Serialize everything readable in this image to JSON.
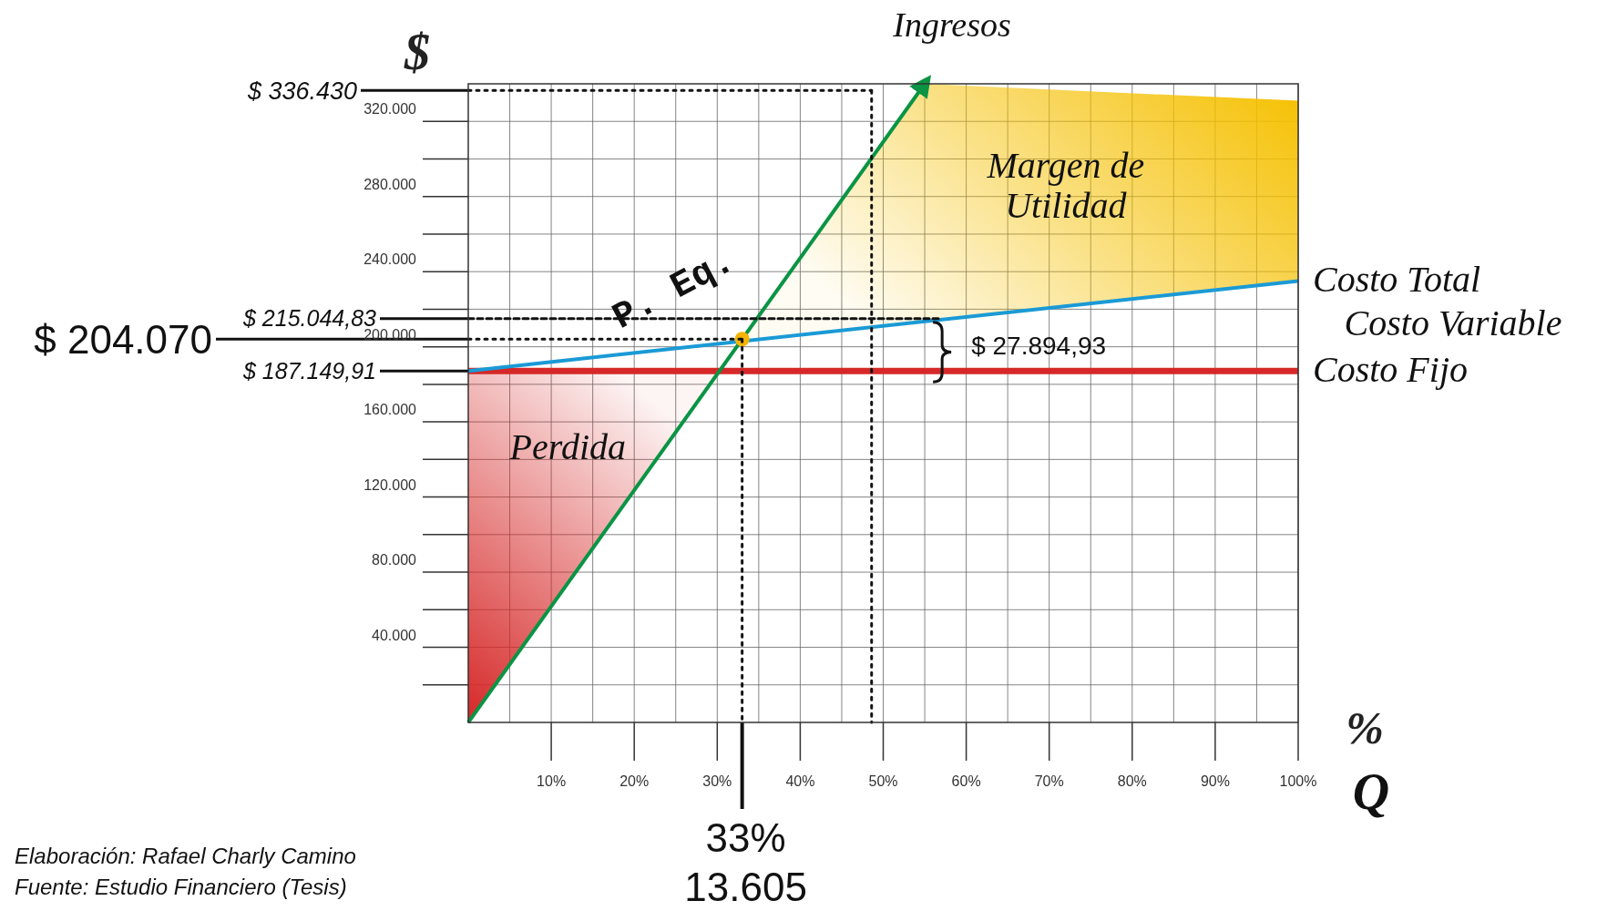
{
  "chart_data": {
    "type": "line",
    "xlabel": "%",
    "ylabel": "$",
    "xlim": [
      0,
      100
    ],
    "ylim": [
      0,
      340000
    ],
    "xticks": [
      {
        "value": 5,
        "label": null
      },
      {
        "value": 10,
        "label": "10%"
      },
      {
        "value": 15,
        "label": null
      },
      {
        "value": 20,
        "label": "20%"
      },
      {
        "value": 25,
        "label": null
      },
      {
        "value": 30,
        "label": "30%"
      },
      {
        "value": 35,
        "label": null
      },
      {
        "value": 40,
        "label": "40%"
      },
      {
        "value": 45,
        "label": null
      },
      {
        "value": 50,
        "label": "50%"
      },
      {
        "value": 55,
        "label": null
      },
      {
        "value": 60,
        "label": "60%"
      },
      {
        "value": 65,
        "label": null
      },
      {
        "value": 70,
        "label": "70%"
      },
      {
        "value": 75,
        "label": null
      },
      {
        "value": 80,
        "label": "80%"
      },
      {
        "value": 85,
        "label": null
      },
      {
        "value": 90,
        "label": "90%"
      },
      {
        "value": 95,
        "label": null
      },
      {
        "value": 100,
        "label": "100%"
      }
    ],
    "yticks": [
      {
        "value": 20000,
        "label": null
      },
      {
        "value": 40000,
        "label": "40.000"
      },
      {
        "value": 60000,
        "label": null
      },
      {
        "value": 80000,
        "label": "80.000"
      },
      {
        "value": 100000,
        "label": null
      },
      {
        "value": 120000,
        "label": "120.000"
      },
      {
        "value": 140000,
        "label": null
      },
      {
        "value": 160000,
        "label": "160.000"
      },
      {
        "value": 180000,
        "label": null
      },
      {
        "value": 200000,
        "label": "200.000"
      },
      {
        "value": 220000,
        "label": null
      },
      {
        "value": 240000,
        "label": "240.000"
      },
      {
        "value": 260000,
        "label": null
      },
      {
        "value": 280000,
        "label": "280.000"
      },
      {
        "value": 300000,
        "label": null
      },
      {
        "value": 320000,
        "label": "320.000"
      }
    ],
    "grid": true,
    "legend": false,
    "series": [
      {
        "name": "Perdida",
        "type": "area",
        "color": "#d62828",
        "x": [
          0,
          0,
          30
        ],
        "values": [
          0,
          187000,
          187000
        ]
      },
      {
        "name": "Margen de Utilidad",
        "type": "area",
        "color": "#f5c000",
        "x": [
          33,
          55,
          100,
          100
        ],
        "values": [
          204000,
          340000,
          331000,
          235000
        ]
      },
      {
        "name": "Costo Fijo",
        "color": "#d62828",
        "x": [
          0,
          100
        ],
        "values": [
          187149.91,
          187149.91
        ]
      },
      {
        "name": "Costo Total",
        "color": "#1a9ad6",
        "x": [
          0,
          100
        ],
        "values": [
          187149.91,
          235000
        ]
      },
      {
        "name": "Ingresos",
        "color": "#0a9444",
        "x": [
          0,
          55
        ],
        "values": [
          0,
          340000
        ]
      },
      {
        "type": "scatter",
        "color": "#f5b400",
        "x": [
          33
        ],
        "values": [
          204070
        ]
      }
    ],
    "ref_lines": [
      {
        "axis": "y",
        "value": 336430,
        "label": "$ 336.430",
        "line_style": "dotted"
      },
      {
        "axis": "y",
        "value": 215044.83,
        "label": "$ 215.044,83",
        "line_style": "dashed"
      },
      {
        "axis": "y",
        "value": 204070,
        "label": "$ 204.070",
        "line_style": "dotted"
      },
      {
        "axis": "y",
        "value": 187149.91,
        "label": "$ 187.149,91",
        "line_style": "solid"
      },
      {
        "axis": "x",
        "value": 33,
        "label": "33%",
        "line_style": "dotted"
      },
      {
        "axis": "x",
        "value": 48.6,
        "label": null,
        "line_style": "dotted"
      }
    ],
    "annotations": [
      {
        "text": "P. Eq.",
        "x": 33,
        "y": 204070
      },
      "$ 27.894,93",
      "13.605",
      "Costo Variable",
      "Q",
      "Elaboración: Rafael Charly Camino",
      "Fuente: Estudio Financiero (Tesis)"
    ]
  }
}
